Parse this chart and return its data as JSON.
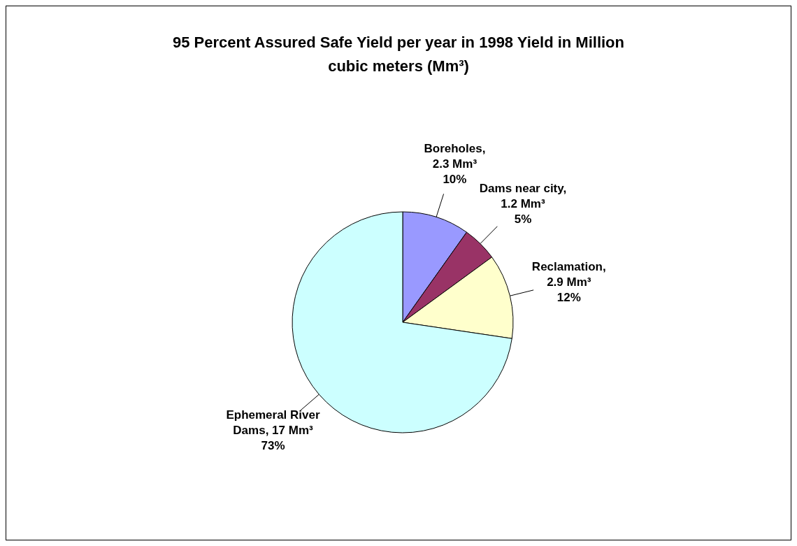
{
  "chart_data": {
    "type": "pie",
    "title": "95 Percent Assured Safe Yield per year in 1998 Yield in Million cubic meters (Mm³)",
    "categories": [
      "Boreholes",
      "Dams near city",
      "Reclamation",
      "Ephemeral River Dams"
    ],
    "values": [
      2.3,
      1.2,
      2.9,
      17
    ],
    "colors": [
      "#9999ff",
      "#993366",
      "#ffffcc",
      "#ccffff"
    ],
    "value_labels": [
      ",\n2.3 Mm³\n10%",
      ",\n1.2 Mm³\n5%",
      ",\n2.9 Mm³\n12%",
      ", 17 Mm³\n73%"
    ]
  }
}
